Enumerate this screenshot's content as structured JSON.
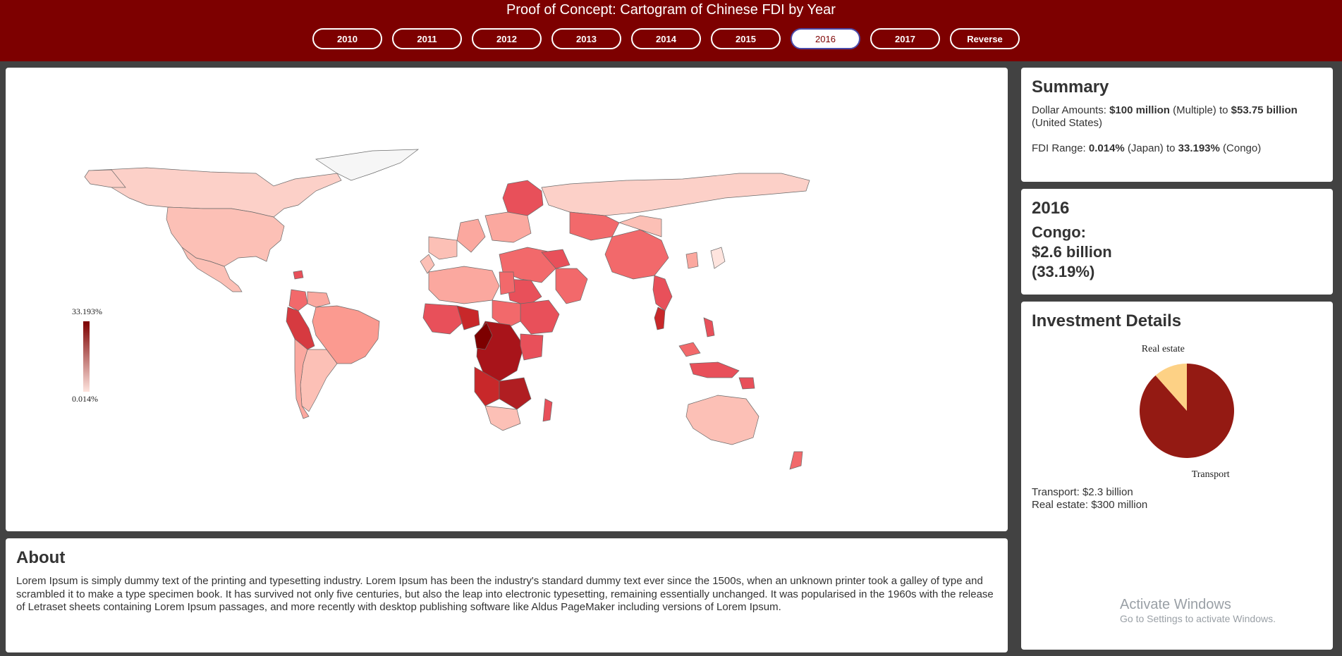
{
  "header": {
    "title": "Proof of Concept: Cartogram of Chinese FDI by Year",
    "buttons": [
      "2010",
      "2011",
      "2012",
      "2013",
      "2014",
      "2015",
      "2016",
      "2017",
      "Reverse"
    ],
    "active": "2016",
    "colors": {
      "header_bg": "#7d0000",
      "active_border": "#4a4aa8"
    }
  },
  "legend": {
    "max_label": "33.193%",
    "min_label": "0.014%",
    "max_color": "#7d0000",
    "min_color": "#fee4de"
  },
  "summary": {
    "heading": "Summary",
    "dollar_prefix": "Dollar Amounts:",
    "dollar_min": "$100 million",
    "dollar_min_note": "(Multiple) to",
    "dollar_max": "$53.75 billion",
    "dollar_max_note": "(United States)",
    "fdi_prefix": "FDI Range:",
    "fdi_min": "0.014%",
    "fdi_min_note": "(Japan) to",
    "fdi_max": "33.193%",
    "fdi_max_note": "(Congo)"
  },
  "selected": {
    "year": "2016",
    "country": "Congo:",
    "amount": "$2.6 billion",
    "percent": "(33.19%)"
  },
  "details": {
    "heading": "Investment Details",
    "pie": [
      {
        "label": "Transport",
        "value": 2.3,
        "color": "#941a13"
      },
      {
        "label": "Real estate",
        "value": 0.3,
        "color": "#fdd185"
      }
    ],
    "lines": [
      "Transport: $2.3 billion",
      "Real estate: $300 million"
    ]
  },
  "about": {
    "heading": "About",
    "text": "Lorem Ipsum is simply dummy text of the printing and typesetting industry. Lorem Ipsum has been the industry's standard dummy text ever since the 1500s, when an unknown printer took a galley of type and scrambled it to make a type specimen book. It has survived not only five centuries, but also the leap into electronic typesetting, remaining essentially unchanged. It was popularised in the 1960s with the release of Letraset sheets containing Lorem Ipsum passages, and more recently with desktop publishing software like Aldus PageMaker including versions of Lorem Ipsum."
  },
  "watermark": {
    "title": "Activate Windows",
    "sub": "Go to Settings to activate Windows."
  }
}
